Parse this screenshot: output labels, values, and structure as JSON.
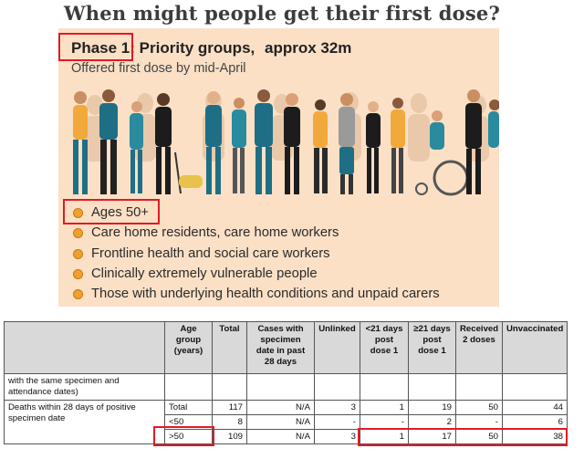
{
  "headline": "When might people get their first dose?",
  "panel": {
    "phase_label": "Phase 1:",
    "phase_title": "Priority groups,",
    "phase_approx": "approx 32m",
    "subtitle": "Offered first dose by mid-April",
    "bullets": [
      "Ages 50+",
      "Care home residents, care home workers",
      "Frontline health and social care workers",
      "Clinically extremely vulnerable people",
      "Those with underlying health conditions and unpaid carers"
    ],
    "colors": {
      "background": "#fbe0c6",
      "bullet": "#f0a030",
      "highlight": "#e01b24"
    }
  },
  "table": {
    "headers": [
      "",
      "Age group (years)",
      "Total",
      "Cases with specimen date in past 28 days",
      "Unlinked",
      "<21 days post dose 1",
      "≥21 days post dose 1",
      "Received 2 doses",
      "Unvaccinated"
    ],
    "continued_label": "with the same specimen and attendance dates)",
    "deaths_label": "Deaths within 28 days of positive specimen date",
    "rows": [
      [
        "Total",
        "117",
        "N/A",
        "3",
        "1",
        "19",
        "50",
        "44"
      ],
      [
        "<50",
        "8",
        "N/A",
        "-",
        "-",
        "2",
        "-",
        "6"
      ],
      [
        ">50",
        "109",
        "N/A",
        "3",
        "1",
        "17",
        "50",
        "38"
      ]
    ]
  }
}
